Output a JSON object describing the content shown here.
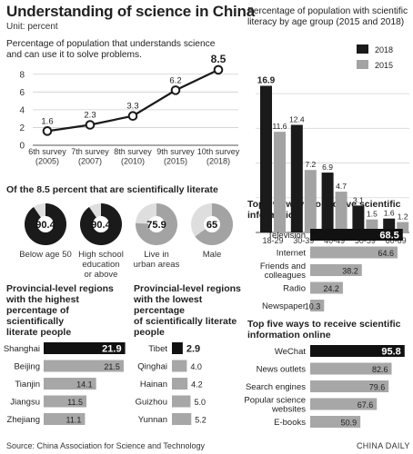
{
  "header": {
    "title": "Understanding of science in China",
    "unit": "Unit: percent"
  },
  "footer": {
    "source": "Source: China Association for Science and Technology",
    "brand": "CHINA DAILY"
  },
  "chart_data": [
    {
      "id": "survey",
      "type": "line",
      "title": "Percentage of population that understands science and can use it to solve problems.",
      "categories": [
        "6th survey (2005)",
        "7th survey (2007)",
        "8th survey (2010)",
        "9th survey (2015)",
        "10th survey (2018)"
      ],
      "category_lines": [
        [
          "6th survey",
          "(2005)"
        ],
        [
          "7th survey",
          "(2007)"
        ],
        [
          "8th survey",
          "(2010)"
        ],
        [
          "9th survey",
          "(2015)"
        ],
        [
          "10th survey",
          "(2018)"
        ]
      ],
      "values": [
        1.6,
        2.3,
        3.3,
        6.2,
        8.5
      ],
      "labels": [
        "1.6",
        "2.3",
        "3.3",
        "6.2",
        "8.5"
      ],
      "yticks": [
        "0",
        "2",
        "4",
        "6",
        "8"
      ],
      "ylim": [
        0,
        9
      ],
      "grid": true
    },
    {
      "id": "age",
      "type": "bar",
      "title": "Percentage of population with scientific literacy by age group (2015 and 2018)",
      "categories": [
        "18-29",
        "30-39",
        "40-49",
        "50-59",
        "60-69"
      ],
      "series": [
        {
          "name": "2018",
          "color": "#1a1a1a",
          "values": [
            16.9,
            12.4,
            6.9,
            3.1,
            1.6
          ],
          "labels": [
            "16.9",
            "12.4",
            "6.9",
            "3.1",
            "1.6"
          ]
        },
        {
          "name": "2015",
          "color": "#a3a3a3",
          "values": [
            11.6,
            7.2,
            4.7,
            1.5,
            1.2
          ],
          "labels": [
            "11.6",
            "7.2",
            "4.7",
            "1.5",
            "1.2"
          ]
        }
      ],
      "ylim": [
        0,
        18
      ],
      "grid": true,
      "legend": "top-right"
    },
    {
      "id": "pies",
      "type": "pie",
      "title": "Of the 8.5 percent that are scientifically literate",
      "items": [
        {
          "value": 90.4,
          "value_label": "90.4",
          "label_lines": [
            "Below age 50"
          ],
          "color": "#1a1a1a"
        },
        {
          "value": 90.4,
          "value_label": "90.4",
          "label_lines": [
            "High school",
            "education",
            "or above"
          ],
          "color": "#1a1a1a"
        },
        {
          "value": 75.9,
          "value_label": "75.9",
          "label_lines": [
            "Live in",
            "urban areas"
          ],
          "color": "#a3a3a3"
        },
        {
          "value": 65,
          "value_label": "65",
          "label_lines": [
            "Male"
          ],
          "color": "#a3a3a3"
        }
      ]
    },
    {
      "id": "highest",
      "type": "bar",
      "title_lines": [
        "Provincial-level regions",
        "with the highest",
        "percentage of scientifically",
        "literate people"
      ],
      "categories": [
        "Shanghai",
        "Beijing",
        "Tianjin",
        "Jiangsu",
        "Zhejiang"
      ],
      "values": [
        21.9,
        21.5,
        14.1,
        11.5,
        11.1
      ],
      "labels": [
        "21.9",
        "21.5",
        "14.1",
        "11.5",
        "11.1"
      ],
      "xlim": [
        0,
        22
      ]
    },
    {
      "id": "lowest",
      "type": "bar",
      "title_lines": [
        "Provincial-level regions",
        "with the lowest percentage",
        "of scientifically literate",
        "people"
      ],
      "categories": [
        "Tibet",
        "Qinghai",
        "Hainan",
        "Guizhou",
        "Yunnan"
      ],
      "values": [
        2.9,
        4.0,
        4.2,
        5.0,
        5.2
      ],
      "labels": [
        "2.9",
        "4.0",
        "4.2",
        "5.0",
        "5.2"
      ],
      "xlim": [
        0,
        22
      ]
    },
    {
      "id": "ways",
      "type": "bar",
      "title_lines": [
        "Top five ways to receive scientific",
        "information"
      ],
      "categories": [
        "Television",
        "Internet",
        "Friends and colleagues",
        "Radio",
        "Newspaper"
      ],
      "category_lines": [
        [
          "Television"
        ],
        [
          "Internet"
        ],
        [
          "Friends and",
          "colleagues"
        ],
        [
          "Radio"
        ],
        [
          "Newspaper"
        ]
      ],
      "values": [
        68.5,
        64.6,
        38.2,
        24.2,
        10.3
      ],
      "labels": [
        "68.5",
        "64.6",
        "38.2",
        "24.2",
        "10.3"
      ],
      "xlim": [
        0,
        70
      ]
    },
    {
      "id": "online",
      "type": "bar",
      "title_lines": [
        "Top five ways to receive scientific",
        "information online"
      ],
      "categories": [
        "WeChat",
        "News outlets",
        "Search engines",
        "Popular science websites",
        "E-books"
      ],
      "category_lines": [
        [
          "WeChat"
        ],
        [
          "News outlets"
        ],
        [
          "Search engines"
        ],
        [
          "Popular science",
          "websites"
        ],
        [
          "E-books"
        ]
      ],
      "values": [
        95.8,
        82.6,
        79.6,
        67.6,
        50.9
      ],
      "labels": [
        "95.8",
        "82.6",
        "79.6",
        "67.6",
        "50.9"
      ],
      "xlim": [
        0,
        96
      ]
    }
  ]
}
